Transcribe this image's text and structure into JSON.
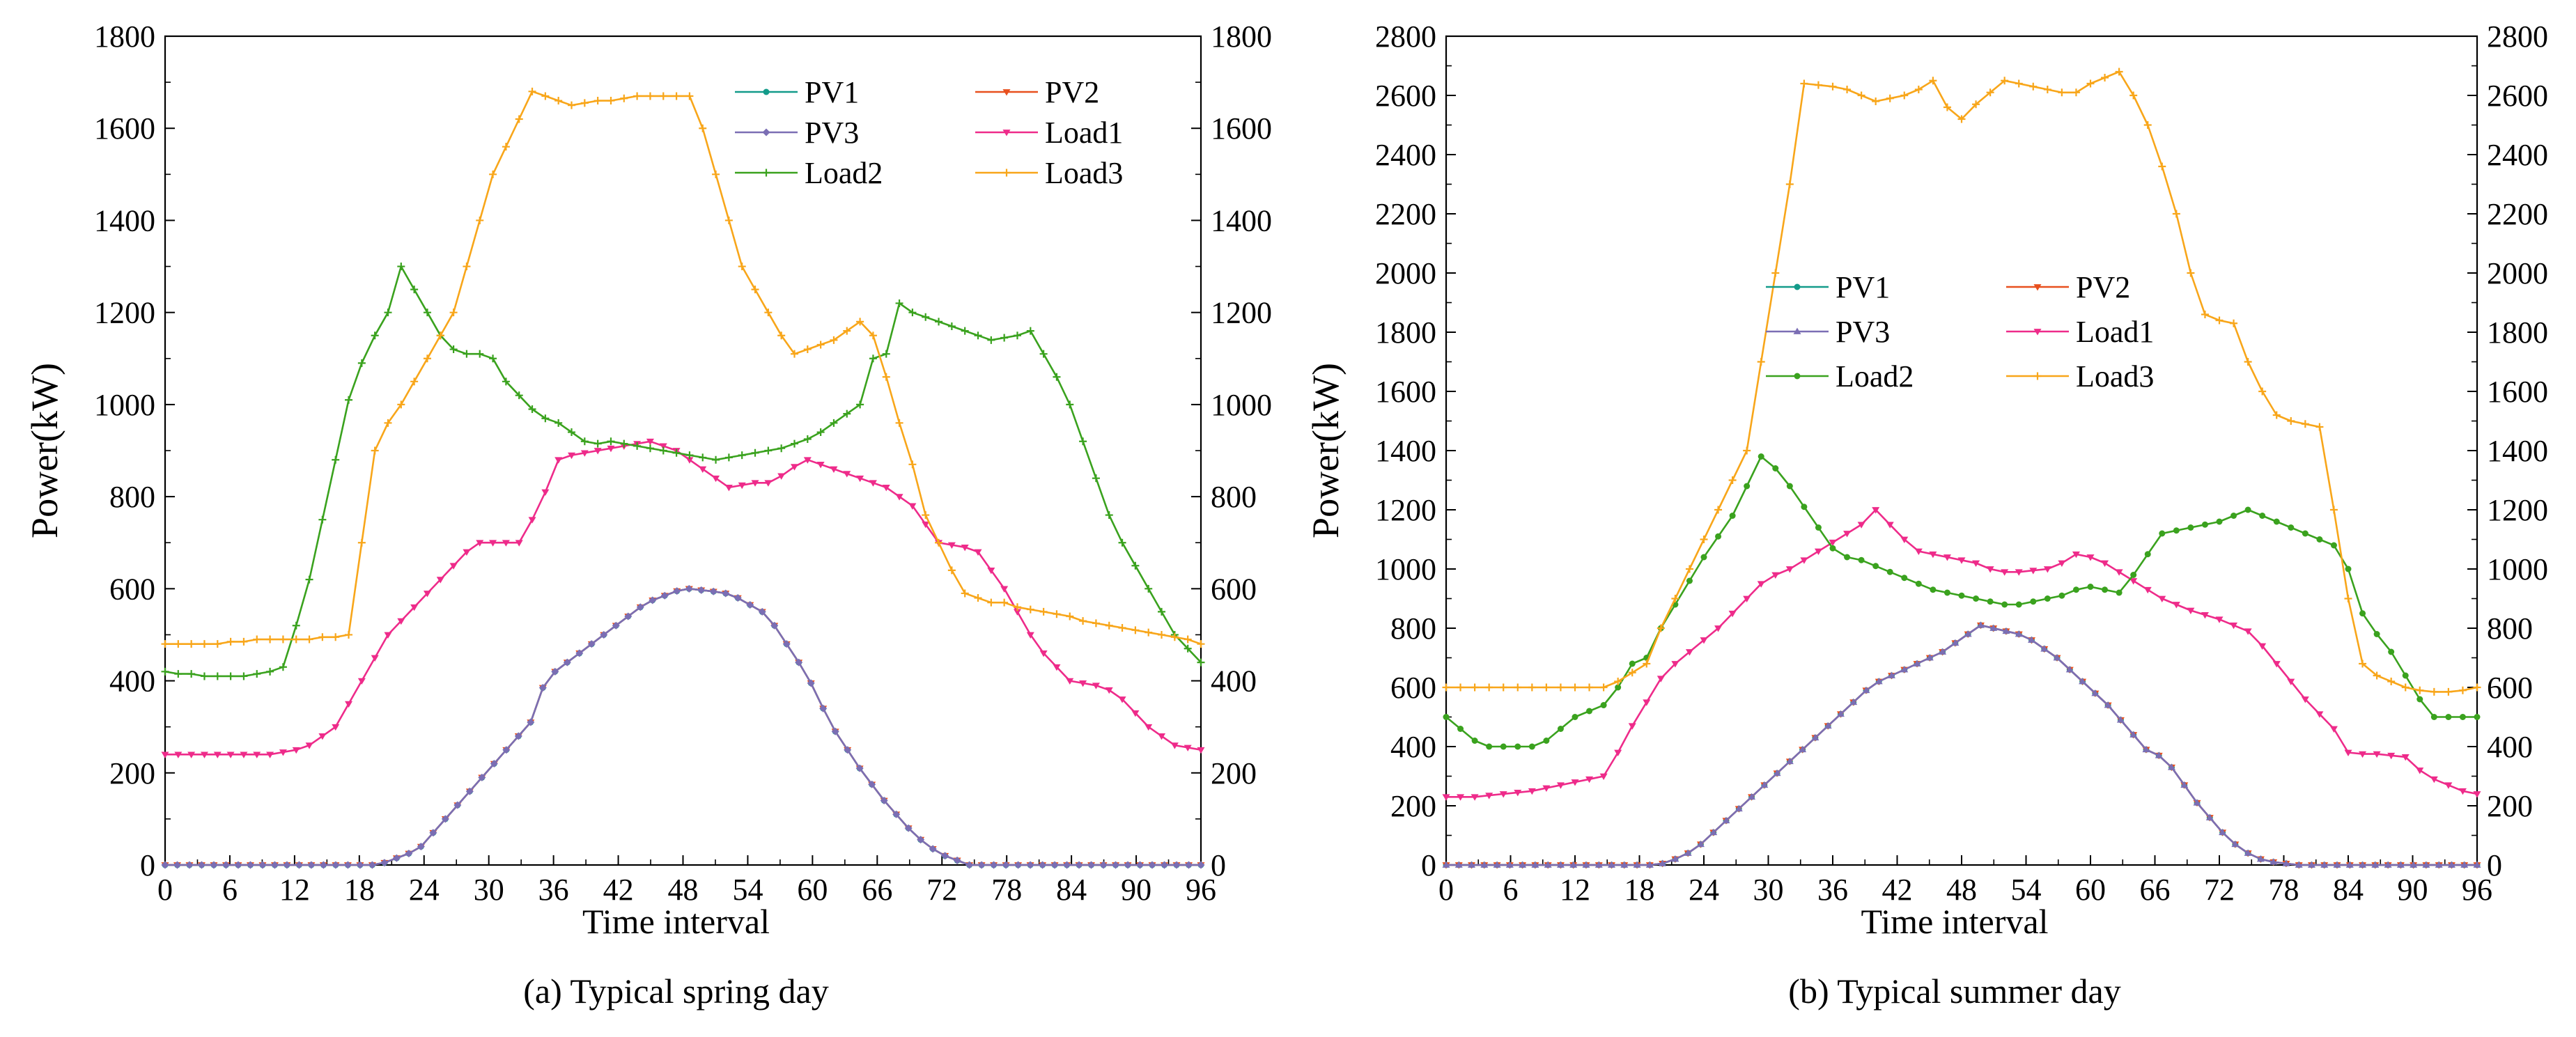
{
  "chart_data": [
    {
      "type": "line",
      "title": "",
      "caption": "(a) Typical spring day",
      "xlabel": "Time interval",
      "ylabel": "Power(kW)",
      "xlim": [
        0,
        96
      ],
      "ylim": [
        0,
        1800
      ],
      "xticks": [
        "0",
        "6",
        "12",
        "18",
        "24",
        "30",
        "36",
        "42",
        "48",
        "54",
        "60",
        "66",
        "72",
        "78",
        "84",
        "90",
        "96"
      ],
      "yticks": [
        "0",
        "200",
        "400",
        "600",
        "800",
        "1000",
        "1200",
        "1400",
        "1600",
        "1800"
      ],
      "legend": {
        "placement": "top-right",
        "columns": 2
      },
      "series": [
        {
          "name": "PV1",
          "color": "#139b8a",
          "marker": "circle",
          "y": [
            0,
            0,
            0,
            0,
            0,
            0,
            0,
            0,
            0,
            0,
            0,
            0,
            0,
            0,
            0,
            0,
            0,
            0,
            5,
            15,
            25,
            40,
            70,
            100,
            130,
            160,
            190,
            220,
            250,
            280,
            310,
            385,
            420,
            440,
            460,
            480,
            500,
            520,
            540,
            560,
            575,
            585,
            595,
            600,
            597,
            594,
            590,
            580,
            565,
            550,
            520,
            480,
            440,
            395,
            340,
            290,
            250,
            210,
            175,
            140,
            110,
            80,
            55,
            35,
            20,
            10,
            0,
            0,
            0,
            0,
            0,
            0,
            0,
            0,
            0,
            0,
            0,
            0,
            0,
            0,
            0,
            0,
            0,
            0,
            0,
            0
          ]
        },
        {
          "name": "PV2",
          "color": "#e8501e",
          "marker": "triangle-down",
          "y": [
            0,
            0,
            0,
            0,
            0,
            0,
            0,
            0,
            0,
            0,
            0,
            0,
            0,
            0,
            0,
            0,
            0,
            0,
            5,
            15,
            25,
            40,
            70,
            100,
            130,
            160,
            190,
            220,
            250,
            280,
            310,
            385,
            420,
            440,
            460,
            480,
            500,
            520,
            540,
            560,
            575,
            585,
            595,
            600,
            597,
            594,
            590,
            580,
            565,
            550,
            520,
            480,
            440,
            395,
            340,
            290,
            250,
            210,
            175,
            140,
            110,
            80,
            55,
            35,
            20,
            10,
            0,
            0,
            0,
            0,
            0,
            0,
            0,
            0,
            0,
            0,
            0,
            0,
            0,
            0,
            0,
            0,
            0,
            0,
            0,
            0
          ]
        },
        {
          "name": "PV3",
          "color": "#7b6eb4",
          "marker": "diamond",
          "y": [
            0,
            0,
            0,
            0,
            0,
            0,
            0,
            0,
            0,
            0,
            0,
            0,
            0,
            0,
            0,
            0,
            0,
            0,
            5,
            15,
            25,
            40,
            70,
            100,
            130,
            160,
            190,
            220,
            250,
            280,
            310,
            385,
            420,
            440,
            460,
            480,
            500,
            520,
            540,
            560,
            575,
            585,
            595,
            600,
            597,
            594,
            590,
            580,
            565,
            550,
            520,
            480,
            440,
            395,
            340,
            290,
            250,
            210,
            175,
            140,
            110,
            80,
            55,
            35,
            20,
            10,
            0,
            0,
            0,
            0,
            0,
            0,
            0,
            0,
            0,
            0,
            0,
            0,
            0,
            0,
            0,
            0,
            0,
            0,
            0,
            0
          ]
        },
        {
          "name": "Load1",
          "color": "#ee2b8a",
          "marker": "triangle-down",
          "y": [
            240,
            240,
            240,
            240,
            240,
            240,
            240,
            240,
            240,
            245,
            250,
            260,
            280,
            300,
            350,
            400,
            450,
            500,
            530,
            560,
            590,
            620,
            650,
            680,
            700,
            700,
            700,
            700,
            750,
            810,
            880,
            890,
            895,
            900,
            905,
            910,
            915,
            920,
            910,
            900,
            880,
            860,
            840,
            820,
            825,
            830,
            830,
            845,
            865,
            880,
            870,
            860,
            850,
            840,
            830,
            820,
            800,
            780,
            740,
            700,
            695,
            690,
            680,
            640,
            600,
            550,
            500,
            460,
            430,
            400,
            395,
            390,
            380,
            360,
            330,
            300,
            280,
            260,
            255,
            250
          ]
        },
        {
          "name": "Load2",
          "color": "#3aa21e",
          "marker": "plus",
          "y": [
            420,
            415,
            415,
            410,
            410,
            410,
            410,
            415,
            420,
            430,
            520,
            620,
            750,
            880,
            1010,
            1090,
            1150,
            1200,
            1300,
            1250,
            1200,
            1150,
            1120,
            1110,
            1110,
            1100,
            1050,
            1020,
            990,
            970,
            960,
            940,
            920,
            915,
            920,
            915,
            910,
            905,
            900,
            895,
            890,
            885,
            880,
            885,
            890,
            895,
            900,
            905,
            915,
            925,
            940,
            960,
            980,
            1000,
            1100,
            1110,
            1220,
            1200,
            1190,
            1180,
            1170,
            1160,
            1150,
            1140,
            1145,
            1150,
            1160,
            1110,
            1060,
            1000,
            920,
            840,
            760,
            700,
            650,
            600,
            550,
            500,
            470,
            440
          ]
        },
        {
          "name": "Load3",
          "color": "#f8a61a",
          "marker": "plus",
          "y": [
            480,
            480,
            480,
            480,
            480,
            485,
            485,
            490,
            490,
            490,
            490,
            490,
            495,
            495,
            500,
            700,
            900,
            960,
            1000,
            1050,
            1100,
            1150,
            1200,
            1300,
            1400,
            1500,
            1560,
            1620,
            1680,
            1670,
            1660,
            1650,
            1655,
            1660,
            1660,
            1665,
            1670,
            1670,
            1670,
            1670,
            1670,
            1600,
            1500,
            1400,
            1300,
            1250,
            1200,
            1150,
            1110,
            1120,
            1130,
            1140,
            1160,
            1180,
            1150,
            1060,
            960,
            870,
            760,
            700,
            640,
            590,
            580,
            570,
            570,
            560,
            555,
            550,
            545,
            540,
            530,
            525,
            520,
            515,
            510,
            505,
            500,
            495,
            490,
            480
          ]
        }
      ]
    },
    {
      "type": "line",
      "title": "",
      "caption": "(b) Typical summer day",
      "xlabel": "Time interval",
      "ylabel": "Power(kW)",
      "xlim": [
        0,
        96
      ],
      "ylim": [
        0,
        2800
      ],
      "xticks": [
        "0",
        "6",
        "12",
        "18",
        "24",
        "30",
        "36",
        "42",
        "48",
        "54",
        "60",
        "66",
        "72",
        "78",
        "84",
        "90",
        "96"
      ],
      "yticks": [
        "0",
        "200",
        "400",
        "600",
        "800",
        "1000",
        "1200",
        "1400",
        "1600",
        "1800",
        "2000",
        "2200",
        "2400",
        "2600",
        "2800"
      ],
      "legend": {
        "placement": "center-left",
        "columns": 2
      },
      "series": [
        {
          "name": "PV1",
          "color": "#139b8a",
          "marker": "circle",
          "y": [
            0,
            0,
            0,
            0,
            0,
            0,
            0,
            0,
            0,
            0,
            0,
            0,
            0,
            0,
            0,
            0,
            0,
            5,
            20,
            40,
            70,
            110,
            150,
            190,
            230,
            270,
            310,
            350,
            390,
            430,
            470,
            510,
            550,
            590,
            620,
            640,
            660,
            680,
            700,
            720,
            750,
            780,
            810,
            800,
            790,
            780,
            760,
            730,
            700,
            660,
            620,
            580,
            540,
            490,
            440,
            390,
            370,
            330,
            270,
            210,
            160,
            110,
            70,
            40,
            20,
            10,
            5,
            0,
            0,
            0,
            0,
            0,
            0,
            0,
            0,
            0,
            0,
            0,
            0,
            0,
            0,
            0
          ]
        },
        {
          "name": "PV2",
          "color": "#e8501e",
          "marker": "triangle-down",
          "y": [
            0,
            0,
            0,
            0,
            0,
            0,
            0,
            0,
            0,
            0,
            0,
            0,
            0,
            0,
            0,
            0,
            0,
            5,
            20,
            40,
            70,
            110,
            150,
            190,
            230,
            270,
            310,
            350,
            390,
            430,
            470,
            510,
            550,
            590,
            620,
            640,
            660,
            680,
            700,
            720,
            750,
            780,
            810,
            800,
            790,
            780,
            760,
            730,
            700,
            660,
            620,
            580,
            540,
            490,
            440,
            390,
            370,
            330,
            270,
            210,
            160,
            110,
            70,
            40,
            20,
            10,
            5,
            0,
            0,
            0,
            0,
            0,
            0,
            0,
            0,
            0,
            0,
            0,
            0,
            0,
            0,
            0
          ]
        },
        {
          "name": "PV3",
          "color": "#7b6eb4",
          "marker": "triangle-up",
          "y": [
            0,
            0,
            0,
            0,
            0,
            0,
            0,
            0,
            0,
            0,
            0,
            0,
            0,
            0,
            0,
            0,
            0,
            5,
            20,
            40,
            70,
            110,
            150,
            190,
            230,
            270,
            310,
            350,
            390,
            430,
            470,
            510,
            550,
            590,
            620,
            640,
            660,
            680,
            700,
            720,
            750,
            780,
            810,
            800,
            790,
            780,
            760,
            730,
            700,
            660,
            620,
            580,
            540,
            490,
            440,
            390,
            370,
            330,
            270,
            210,
            160,
            110,
            70,
            40,
            20,
            10,
            5,
            0,
            0,
            0,
            0,
            0,
            0,
            0,
            0,
            0,
            0,
            0,
            0,
            0,
            0,
            0
          ]
        },
        {
          "name": "Load1",
          "color": "#ee2b8a",
          "marker": "triangle-down",
          "y": [
            230,
            230,
            230,
            235,
            240,
            245,
            250,
            260,
            270,
            280,
            290,
            300,
            380,
            470,
            550,
            630,
            680,
            720,
            760,
            800,
            850,
            900,
            950,
            980,
            1000,
            1030,
            1060,
            1090,
            1120,
            1150,
            1200,
            1150,
            1100,
            1060,
            1050,
            1040,
            1030,
            1020,
            1000,
            990,
            990,
            995,
            1000,
            1020,
            1050,
            1040,
            1020,
            990,
            960,
            930,
            900,
            880,
            860,
            845,
            830,
            810,
            790,
            740,
            680,
            620,
            560,
            510,
            460,
            380,
            375,
            375,
            370,
            365,
            320,
            290,
            270,
            250,
            240
          ]
        },
        {
          "name": "Load2",
          "color": "#3aa21e",
          "marker": "circle",
          "y": [
            500,
            460,
            420,
            400,
            400,
            400,
            400,
            420,
            460,
            500,
            520,
            540,
            600,
            680,
            700,
            800,
            880,
            960,
            1040,
            1110,
            1180,
            1280,
            1380,
            1340,
            1280,
            1210,
            1140,
            1070,
            1040,
            1030,
            1010,
            990,
            970,
            950,
            930,
            920,
            910,
            900,
            890,
            880,
            880,
            890,
            900,
            910,
            930,
            940,
            930,
            920,
            980,
            1050,
            1120,
            1130,
            1140,
            1150,
            1160,
            1180,
            1200,
            1180,
            1160,
            1140,
            1120,
            1100,
            1080,
            1000,
            850,
            780,
            720,
            640,
            560,
            500,
            500,
            500,
            500
          ]
        },
        {
          "name": "Load3",
          "color": "#f8a61a",
          "marker": "plus",
          "y": [
            600,
            600,
            600,
            600,
            600,
            600,
            600,
            600,
            600,
            600,
            600,
            600,
            620,
            650,
            680,
            800,
            900,
            1000,
            1100,
            1200,
            1300,
            1400,
            1700,
            2000,
            2300,
            2640,
            2635,
            2630,
            2620,
            2600,
            2580,
            2590,
            2600,
            2620,
            2650,
            2560,
            2520,
            2570,
            2610,
            2650,
            2640,
            2630,
            2620,
            2610,
            2610,
            2640,
            2660,
            2680,
            2600,
            2500,
            2360,
            2200,
            2000,
            1860,
            1840,
            1830,
            1700,
            1600,
            1520,
            1500,
            1490,
            1480,
            1200,
            900,
            680,
            640,
            620,
            600,
            590,
            585,
            585,
            590,
            600
          ]
        }
      ]
    }
  ]
}
